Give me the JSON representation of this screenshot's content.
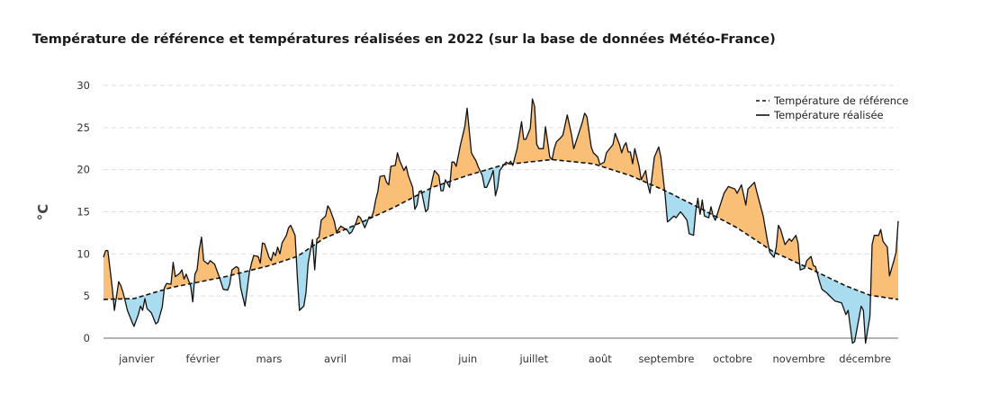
{
  "title": "Température de référence et températures réalisées en 2022 (sur la base de données Météo-France)",
  "chart_data": {
    "type": "area",
    "title": "Température de référence et températures réalisées en 2022 (sur la base de données Météo-France)",
    "xlabel": "",
    "ylabel": "°C",
    "ylim": [
      0,
      30
    ],
    "xlim_days": [
      0,
      365
    ],
    "yticks": [
      "0",
      "5",
      "10",
      "15",
      "20",
      "25",
      "30"
    ],
    "grid": true,
    "legend_placement": "top-right",
    "months": [
      "janvier",
      "février",
      "mars",
      "avril",
      "mai",
      "juin",
      "juillet",
      "août",
      "septembre",
      "octobre",
      "novembre",
      "décembre"
    ],
    "colors": {
      "above": "#f9bf77",
      "below": "#a9dcef",
      "line": "#111111",
      "grid": "#dddddd"
    },
    "series": [
      {
        "name": "Température de référence",
        "style": "dashed",
        "points": [
          [
            0,
            4.6
          ],
          [
            14,
            4.7
          ],
          [
            31,
            6
          ],
          [
            56,
            7.3
          ],
          [
            76,
            8.6
          ],
          [
            89,
            9.7
          ],
          [
            101,
            11.8
          ],
          [
            118,
            13.7
          ],
          [
            134,
            15.6
          ],
          [
            151,
            17.9
          ],
          [
            167,
            19.3
          ],
          [
            184,
            20.6
          ],
          [
            206,
            21.2
          ],
          [
            225,
            20.7
          ],
          [
            242,
            19.3
          ],
          [
            258,
            17.5
          ],
          [
            275,
            15.3
          ],
          [
            291,
            13.1
          ],
          [
            308,
            10.2
          ],
          [
            324,
            8.3
          ],
          [
            341,
            6.2
          ],
          [
            352,
            5.1
          ],
          [
            365,
            4.6
          ]
        ]
      },
      {
        "name": "Température réalisée",
        "style": "solid",
        "points": [
          [
            0,
            9.6
          ],
          [
            1,
            10.4
          ],
          [
            2,
            10.4
          ],
          [
            4,
            6
          ],
          [
            5,
            3.3
          ],
          [
            7,
            6.7
          ],
          [
            8,
            6.2
          ],
          [
            9,
            5.4
          ],
          [
            11,
            3.3
          ],
          [
            13,
            2
          ],
          [
            14,
            1.4
          ],
          [
            16,
            2.8
          ],
          [
            17,
            3.8
          ],
          [
            18,
            3.3
          ],
          [
            19,
            4.7
          ],
          [
            20,
            3.5
          ],
          [
            22,
            3
          ],
          [
            24,
            1.7
          ],
          [
            25,
            1.9
          ],
          [
            27,
            3.7
          ],
          [
            28,
            6
          ],
          [
            29,
            6.5
          ],
          [
            31,
            6.4
          ],
          [
            32,
            9
          ],
          [
            33,
            7.3
          ],
          [
            35,
            7.7
          ],
          [
            36,
            8.1
          ],
          [
            37,
            7
          ],
          [
            38,
            7.6
          ],
          [
            40,
            6.2
          ],
          [
            41,
            4.3
          ],
          [
            42,
            7.6
          ],
          [
            43,
            8.1
          ],
          [
            44,
            10.5
          ],
          [
            45,
            12
          ],
          [
            46,
            9.2
          ],
          [
            48,
            8.8
          ],
          [
            49,
            9.2
          ],
          [
            51,
            8.8
          ],
          [
            53,
            7.4
          ],
          [
            55,
            5.8
          ],
          [
            57,
            5.7
          ],
          [
            58,
            6.4
          ],
          [
            59,
            8.1
          ],
          [
            61,
            8.5
          ],
          [
            62,
            8.3
          ],
          [
            63,
            6
          ],
          [
            65,
            3.8
          ],
          [
            67,
            7.8
          ],
          [
            68,
            8.9
          ],
          [
            69,
            9.8
          ],
          [
            71,
            9.7
          ],
          [
            72,
            8.9
          ],
          [
            73,
            11.3
          ],
          [
            74,
            11.2
          ],
          [
            76,
            9.6
          ],
          [
            77,
            9.2
          ],
          [
            78,
            10.2
          ],
          [
            79,
            9.8
          ],
          [
            80,
            10.8
          ],
          [
            81,
            10
          ],
          [
            82,
            11.3
          ],
          [
            84,
            12.2
          ],
          [
            85,
            13.1
          ],
          [
            86,
            13.4
          ],
          [
            88,
            12.2
          ],
          [
            89,
            7.4
          ],
          [
            90,
            3.3
          ],
          [
            92,
            3.8
          ],
          [
            93,
            5.4
          ],
          [
            94,
            8.9
          ],
          [
            96,
            11.7
          ],
          [
            97,
            8.1
          ],
          [
            98,
            11.8
          ],
          [
            99,
            12
          ],
          [
            100,
            14
          ],
          [
            102,
            14.5
          ],
          [
            103,
            15.7
          ],
          [
            104,
            15.3
          ],
          [
            106,
            13.9
          ],
          [
            107,
            12.6
          ],
          [
            109,
            13.3
          ],
          [
            112,
            12.8
          ],
          [
            113,
            12.4
          ],
          [
            114,
            12.6
          ],
          [
            116,
            13.7
          ],
          [
            117,
            14.5
          ],
          [
            118,
            14.3
          ],
          [
            120,
            13.1
          ],
          [
            121,
            13.7
          ],
          [
            122,
            14.4
          ],
          [
            123,
            14.3
          ],
          [
            124,
            15
          ],
          [
            125,
            16.4
          ],
          [
            126,
            17.4
          ],
          [
            127,
            19.2
          ],
          [
            129,
            19.3
          ],
          [
            130,
            18.5
          ],
          [
            131,
            18.2
          ],
          [
            132,
            20.4
          ],
          [
            134,
            20.5
          ],
          [
            135,
            22
          ],
          [
            136,
            21.1
          ],
          [
            138,
            19.9
          ],
          [
            139,
            20.4
          ],
          [
            140,
            19.3
          ],
          [
            142,
            17.9
          ],
          [
            143,
            15.3
          ],
          [
            144,
            15.8
          ],
          [
            145,
            17.4
          ],
          [
            146,
            17.5
          ],
          [
            148,
            15
          ],
          [
            149,
            15.3
          ],
          [
            150,
            17.5
          ],
          [
            151,
            18.8
          ],
          [
            152,
            19.9
          ],
          [
            154,
            19.3
          ],
          [
            155,
            17.5
          ],
          [
            156,
            17.5
          ],
          [
            157,
            18.8
          ],
          [
            159,
            17.9
          ],
          [
            160,
            20.9
          ],
          [
            161,
            20.9
          ],
          [
            162,
            20.4
          ],
          [
            164,
            23
          ],
          [
            165,
            24.1
          ],
          [
            166,
            25.2
          ],
          [
            167,
            27.3
          ],
          [
            169,
            22
          ],
          [
            170,
            21.5
          ],
          [
            171,
            21.1
          ],
          [
            172,
            20.4
          ],
          [
            174,
            19.3
          ],
          [
            175,
            17.9
          ],
          [
            176,
            17.9
          ],
          [
            178,
            19.1
          ],
          [
            179,
            19.9
          ],
          [
            180,
            16.9
          ],
          [
            181,
            17.9
          ],
          [
            182,
            19.9
          ],
          [
            184,
            20.6
          ],
          [
            185,
            20.9
          ],
          [
            186,
            20.7
          ],
          [
            187,
            21
          ],
          [
            188,
            20.5
          ],
          [
            190,
            22.5
          ],
          [
            191,
            24.1
          ],
          [
            192,
            25.7
          ],
          [
            193,
            23.6
          ],
          [
            194,
            23.6
          ],
          [
            196,
            24.9
          ],
          [
            197,
            28.4
          ],
          [
            198,
            27.5
          ],
          [
            199,
            23
          ],
          [
            200,
            22.5
          ],
          [
            202,
            22.5
          ],
          [
            203,
            25.1
          ],
          [
            205,
            21.5
          ],
          [
            206,
            21.2
          ],
          [
            207,
            22.5
          ],
          [
            208,
            23.3
          ],
          [
            210,
            23.8
          ],
          [
            211,
            24.1
          ],
          [
            213,
            26.5
          ],
          [
            215,
            24.1
          ],
          [
            216,
            22.5
          ],
          [
            218,
            24.1
          ],
          [
            220,
            25.7
          ],
          [
            221,
            26.7
          ],
          [
            222,
            26.3
          ],
          [
            224,
            22.7
          ],
          [
            225,
            22
          ],
          [
            227,
            21.5
          ],
          [
            228,
            20.6
          ],
          [
            230,
            20.9
          ],
          [
            231,
            22
          ],
          [
            234,
            23
          ],
          [
            235,
            24.3
          ],
          [
            237,
            23
          ],
          [
            238,
            22
          ],
          [
            239,
            22.8
          ],
          [
            240,
            23.2
          ],
          [
            241,
            22.1
          ],
          [
            242,
            22.1
          ],
          [
            243,
            20.7
          ],
          [
            244,
            22.5
          ],
          [
            246,
            20.4
          ],
          [
            247,
            18.8
          ],
          [
            249,
            19.9
          ],
          [
            250,
            18.2
          ],
          [
            251,
            17.2
          ],
          [
            253,
            21.5
          ],
          [
            255,
            22.7
          ],
          [
            256,
            21.5
          ],
          [
            258,
            16.9
          ],
          [
            259,
            13.8
          ],
          [
            260,
            14
          ],
          [
            262,
            14.5
          ],
          [
            263,
            14.3
          ],
          [
            265,
            15
          ],
          [
            266,
            14.7
          ],
          [
            268,
            14
          ],
          [
            269,
            12.4
          ],
          [
            271,
            12.2
          ],
          [
            272,
            15
          ],
          [
            273,
            16.6
          ],
          [
            274,
            14.7
          ],
          [
            275,
            16.4
          ],
          [
            276,
            14.5
          ],
          [
            278,
            14.3
          ],
          [
            279,
            15.6
          ],
          [
            280,
            14.5
          ],
          [
            281,
            14
          ],
          [
            283,
            15.6
          ],
          [
            285,
            17.2
          ],
          [
            287,
            18
          ],
          [
            290,
            17.7
          ],
          [
            291,
            17.2
          ],
          [
            293,
            18.2
          ],
          [
            295,
            15.8
          ],
          [
            296,
            17.7
          ],
          [
            299,
            18.5
          ],
          [
            300,
            17.4
          ],
          [
            303,
            14.5
          ],
          [
            305,
            11.5
          ],
          [
            306,
            10.2
          ],
          [
            308,
            9.6
          ],
          [
            309,
            10.8
          ],
          [
            310,
            13.4
          ],
          [
            311,
            12.9
          ],
          [
            313,
            11.1
          ],
          [
            315,
            11.8
          ],
          [
            316,
            11.5
          ],
          [
            318,
            12.2
          ],
          [
            319,
            11.3
          ],
          [
            320,
            8.1
          ],
          [
            322,
            8.3
          ],
          [
            323,
            9.2
          ],
          [
            325,
            9.7
          ],
          [
            326,
            8.6
          ],
          [
            327,
            8.5
          ],
          [
            329,
            6.6
          ],
          [
            330,
            5.8
          ],
          [
            332,
            5.4
          ],
          [
            334,
            4.9
          ],
          [
            336,
            4.4
          ],
          [
            339,
            4.2
          ],
          [
            341,
            2.8
          ],
          [
            342,
            3.3
          ],
          [
            344,
            -0.6
          ],
          [
            345,
            -0.4
          ],
          [
            348,
            3.8
          ],
          [
            349,
            3.3
          ],
          [
            350,
            -0.6
          ],
          [
            352,
            2.6
          ],
          [
            353,
            11.1
          ],
          [
            354,
            12.2
          ],
          [
            356,
            12.2
          ],
          [
            357,
            12.9
          ],
          [
            358,
            11.5
          ],
          [
            360,
            10.8
          ],
          [
            361,
            7.4
          ],
          [
            363,
            9.2
          ],
          [
            364,
            10.2
          ],
          [
            365,
            13.9
          ]
        ]
      }
    ]
  }
}
